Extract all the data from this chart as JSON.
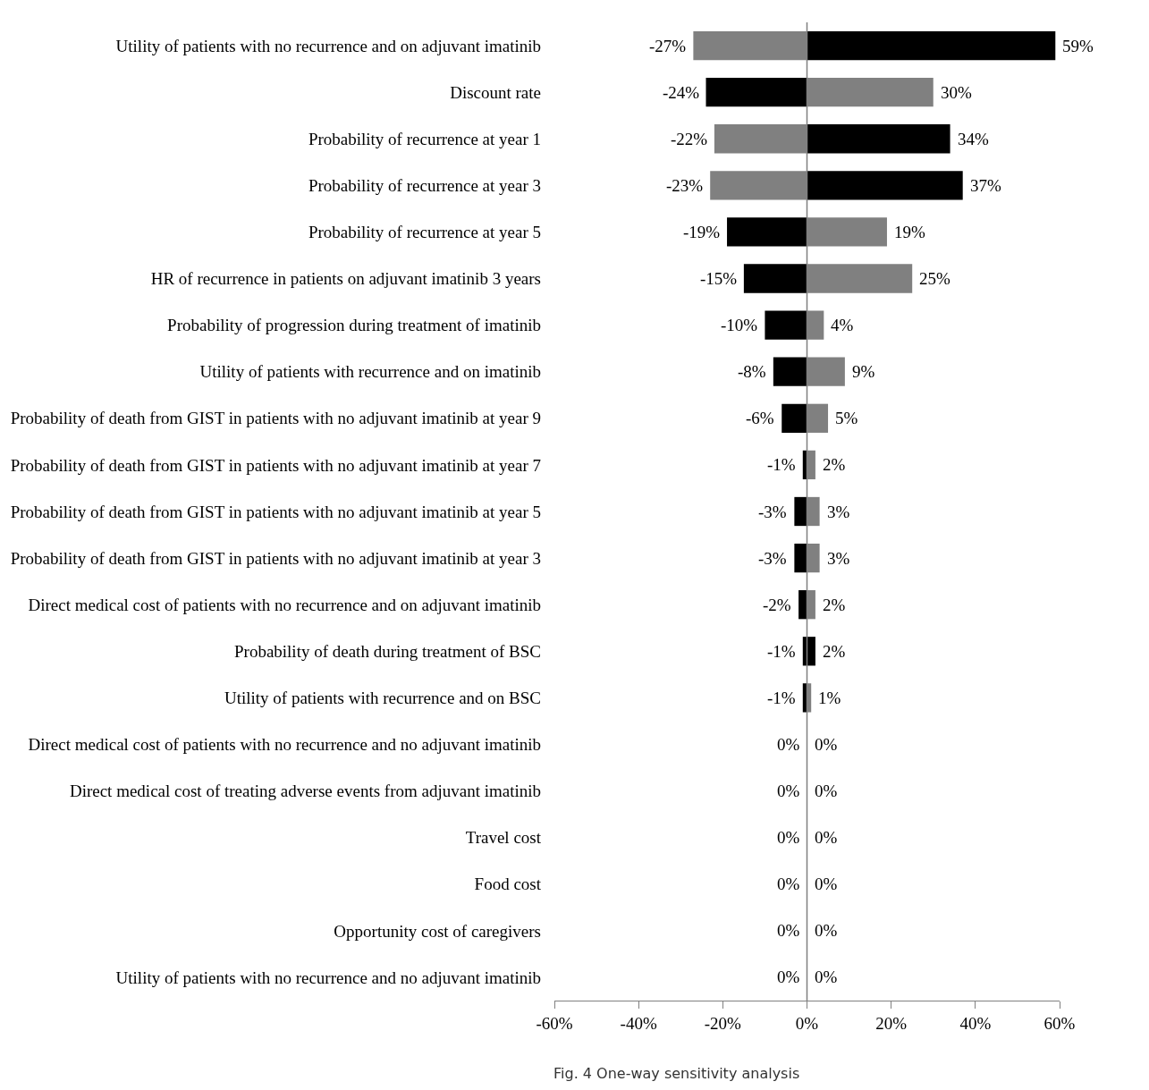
{
  "chart_data": {
    "type": "bar",
    "orientation": "horizontal",
    "stacked": true,
    "categories": [
      "Utility of patients with no recurrence and on adjuvant imatinib",
      "Discount rate",
      "Probability of recurrence at year 1",
      "Probability of recurrence at year 3",
      "Probability of recurrence at year 5",
      "HR of recurrence in patients on adjuvant imatinib 3 years",
      "Probability of progression during treatment of imatinib",
      "Utility of patients with recurrence and on imatinib",
      "Probability of death from GIST in patients with no adjuvant imatinib at year 9",
      "Probability of death from GIST in patients with no adjuvant imatinib at year 7",
      "Probability of death from GIST in patients with no adjuvant imatinib at year 5",
      "Probability of death from GIST in patients with no adjuvant imatinib at year 3",
      "Direct medical cost of patients with no recurrence and on adjuvant imatinib",
      "Probability of death during treatment of BSC",
      "Utility of patients with recurrence and on BSC",
      "Direct medical cost of patients with no recurrence and no adjuvant imatinib",
      "Direct medical cost of treating adverse events from adjuvant imatinib",
      "Travel cost",
      "Food cost",
      "Opportunity cost of caregivers",
      "Utility of patients with no recurrence and no adjuvant imatinib"
    ],
    "series": [
      {
        "colors": [
          "#808080",
          "#000000",
          "#808080",
          "#808080",
          "#000000",
          "#000000",
          "#000000",
          "#000000",
          "#000000",
          "#000000",
          "#000000",
          "#000000",
          "#000000",
          "#000000",
          "#000000",
          "#000000",
          "#000000",
          "#000000",
          "#000000",
          "#000000",
          "#000000"
        ],
        "values": [
          -27,
          -24,
          -22,
          -23,
          -19,
          -15,
          -10,
          -8,
          -6,
          -1,
          -3,
          -3,
          -2,
          -1,
          -1,
          0,
          0,
          0,
          0,
          0,
          0
        ],
        "value_labels": [
          "-27%",
          "-24%",
          "-22%",
          "-23%",
          "-19%",
          "-15%",
          "-10%",
          "-8%",
          "-6%",
          "-1%",
          "-3%",
          "-3%",
          "-2%",
          "-1%",
          "-1%",
          "0%",
          "0%",
          "0%",
          "0%",
          "0%",
          "0%"
        ]
      },
      {
        "colors": [
          "#000000",
          "#808080",
          "#000000",
          "#000000",
          "#808080",
          "#808080",
          "#808080",
          "#808080",
          "#808080",
          "#808080",
          "#808080",
          "#808080",
          "#808080",
          "#000000",
          "#808080",
          "#808080",
          "#808080",
          "#808080",
          "#808080",
          "#808080",
          "#808080"
        ],
        "values": [
          59,
          30,
          34,
          37,
          19,
          25,
          4,
          9,
          5,
          2,
          3,
          3,
          2,
          2,
          1,
          0,
          0,
          0,
          0,
          0,
          0
        ],
        "value_labels": [
          "59%",
          "30%",
          "34%",
          "37%",
          "19%",
          "25%",
          "4%",
          "9%",
          "5%",
          "2%",
          "3%",
          "3%",
          "2%",
          "2%",
          "1%",
          "0%",
          "0%",
          "0%",
          "0%",
          "0%",
          "0%"
        ]
      }
    ],
    "xlim": [
      -60,
      60
    ],
    "xticks": [
      {
        "value": -60,
        "label": "-60%"
      },
      {
        "value": -40,
        "label": "-40%"
      },
      {
        "value": -20,
        "label": "-20%"
      },
      {
        "value": 0,
        "label": "0%"
      },
      {
        "value": 20,
        "label": "20%"
      },
      {
        "value": 40,
        "label": "40%"
      },
      {
        "value": 60,
        "label": "60%"
      }
    ],
    "grid": false,
    "ref_lines": [
      {
        "axis": "x",
        "value": 0,
        "color": "#808080"
      }
    ],
    "annotations": [
      "Fig. 4 One-way sensitivity analysis"
    ]
  }
}
